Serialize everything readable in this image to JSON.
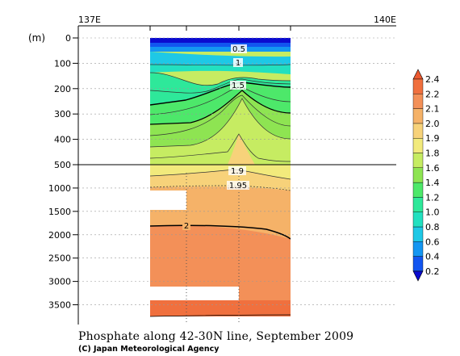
{
  "chart_data": {
    "type": "heatmap",
    "title": "Phosphate along 42-30N line, September 2009",
    "credit": "(C) Japan Meteorological Agency",
    "y_unit": "(m)",
    "x_ticks": [
      "137E",
      "140E"
    ],
    "y_ticks_upper": [
      "0",
      "100",
      "200",
      "300",
      "400",
      "500"
    ],
    "y_ticks_lower": [
      "1000",
      "1500",
      "2000",
      "2500",
      "3000",
      "3500"
    ],
    "upper_range_m": [
      0,
      500
    ],
    "lower_range_m": [
      500,
      3750
    ],
    "colorbar": {
      "levels": [
        0.2,
        0.4,
        0.6,
        0.8,
        1.0,
        1.2,
        1.4,
        1.6,
        1.8,
        1.9,
        2.0,
        2.1,
        2.2,
        2.4
      ],
      "labels": [
        "0.2",
        "0.4",
        "0.6",
        "0.8",
        "1.0",
        "1.2",
        "1.4",
        "1.6",
        "1.8",
        "1.9",
        "2.0",
        "2.1",
        "2.2",
        "2.4"
      ],
      "colors": [
        "#0a0ad0",
        "#1255f0",
        "#1496f2",
        "#1ec8e6",
        "#22e0c0",
        "#2ee89a",
        "#4de86a",
        "#8ee452",
        "#c6ec62",
        "#f2ea7c",
        "#f7d27a",
        "#f5b268",
        "#f39058",
        "#f0703e",
        "#ec5a30"
      ]
    },
    "contour_labels": [
      "0.5",
      "1",
      "1.5",
      "1.9",
      "1.95",
      "2"
    ]
  }
}
